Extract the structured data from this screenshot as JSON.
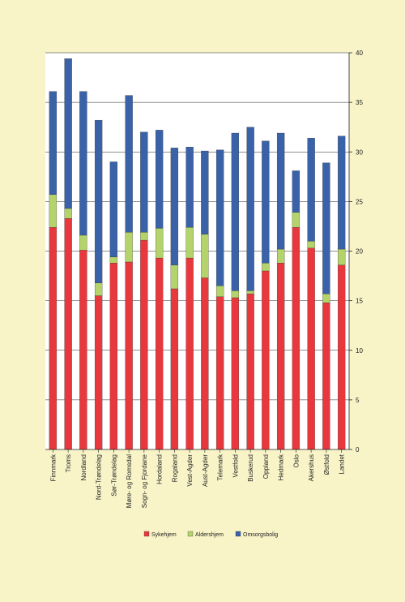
{
  "chart_data": {
    "type": "bar",
    "stacked": true,
    "categories": [
      "Finnmark",
      "Troms",
      "Nordland",
      "Nord-Trøndelag",
      "Sør-Trøndelag",
      "Møre- og Romsdal",
      "Sogn- og Fjordane",
      "Hordaland",
      "Rogaland",
      "Vest-Agder",
      "Aust-Agder",
      "Telemark",
      "Vestfold",
      "Buskerud",
      "Oppland",
      "Hedmark",
      "Oslo",
      "Akershus",
      "Østfold",
      "Landet"
    ],
    "series": [
      {
        "name": "Sykehjem",
        "color": "#e8383d",
        "values": [
          22.4,
          23.3,
          20.1,
          15.5,
          18.8,
          18.9,
          21.1,
          19.3,
          16.2,
          19.3,
          17.3,
          15.4,
          15.3,
          15.7,
          18.0,
          18.8,
          22.4,
          20.3,
          14.8,
          18.6
        ]
      },
      {
        "name": "Aldershjem",
        "color": "#b4d36a",
        "values": [
          3.3,
          1.0,
          1.5,
          1.3,
          0.6,
          3.0,
          0.8,
          3.0,
          2.4,
          3.1,
          4.4,
          1.1,
          0.7,
          0.3,
          0.8,
          1.4,
          1.5,
          0.7,
          0.9,
          1.6
        ]
      },
      {
        "name": "Omsorgsbolig",
        "color": "#3a62a8",
        "values": [
          10.4,
          15.1,
          14.5,
          16.4,
          9.6,
          13.8,
          10.1,
          9.9,
          11.8,
          8.1,
          8.4,
          13.7,
          15.9,
          16.5,
          12.3,
          11.7,
          4.2,
          10.4,
          13.2,
          11.4
        ]
      }
    ],
    "ylim": [
      0,
      40
    ],
    "yticks": [
      0,
      5,
      10,
      15,
      20,
      25,
      30,
      35,
      40
    ],
    "y_axis_side": "right",
    "grid": true,
    "legend_position": "bottom"
  }
}
